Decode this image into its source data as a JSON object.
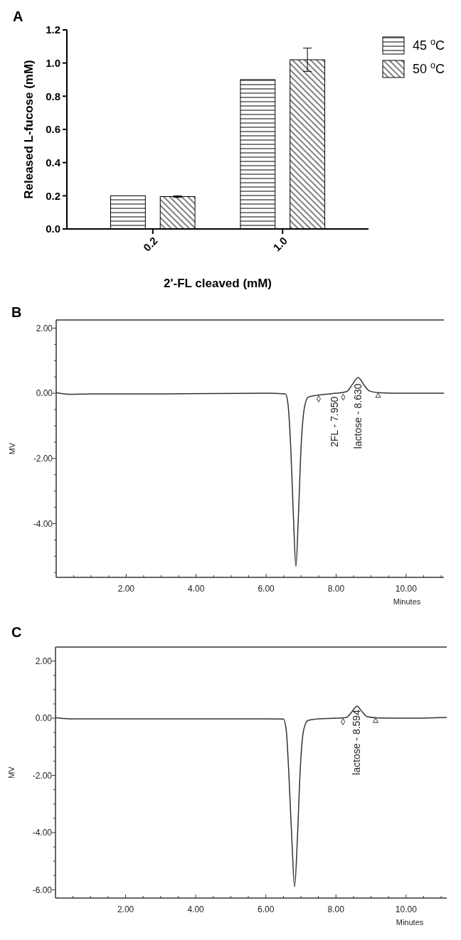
{
  "chart_data": [
    {
      "type": "bar",
      "title": "A",
      "xlabel": "2'-FL cleaved (mM)",
      "ylabel": "Released L-fucose (mM)",
      "categories": [
        "0.2",
        "1.0"
      ],
      "series": [
        {
          "name": "45 $^{o}$C",
          "color": "#000000",
          "values": [
            0.2,
            0.9
          ]
        },
        {
          "name": "50 $^{o}$C",
          "color": "#000000",
          "values": [
            0.195,
            1.02
          ],
          "errors": [
            0.005,
            0.07
          ]
        }
      ],
      "ylim": [
        0,
        1.2
      ],
      "yticks": [
        {
          "value": 0,
          "label": "0.0"
        },
        0.2,
        0.4,
        0.6,
        0.8,
        {
          "value": 1,
          "label": "1.0"
        },
        1.2
      ],
      "legend": "top right"
    },
    {
      "type": "line",
      "title": "B",
      "xlabel": "Minutes",
      "ylabel": "MV",
      "series": [
        {
          "color": "#333333",
          "x": [
            0,
            0.4,
            1,
            3,
            6,
            6.55,
            6.62,
            6.7,
            6.78,
            6.85,
            6.92,
            7.0,
            7.1,
            7.2,
            7.4,
            7.7,
            8.0,
            8.3,
            8.45,
            8.63,
            8.8,
            8.95,
            9.2,
            10,
            11.08
          ],
          "values": [
            0.02,
            -0.03,
            -0.02,
            -0.02,
            0,
            -0.02,
            -0.3,
            -1.6,
            -3.8,
            -5.32,
            -3.8,
            -1.6,
            -0.4,
            -0.12,
            -0.07,
            -0.03,
            0,
            0.05,
            0.25,
            0.48,
            0.25,
            0.07,
            0.02,
            0,
            0
          ]
        },
        {
          "type": "scatter",
          "marker": "diamond",
          "color": "#333333",
          "x": [
            7.5,
            8.2
          ],
          "values": [
            -0.17,
            -0.12
          ]
        },
        {
          "type": "scatter",
          "marker": "triangle",
          "color": "#333333",
          "x": [
            9.2
          ],
          "values": [
            -0.08
          ]
        }
      ],
      "xlim": [
        0,
        11.08
      ],
      "ylim": [
        -5.65,
        2.25
      ],
      "xticks": [
        {
          "value": 0.5,
          "label": null
        },
        {
          "value": 1,
          "label": null
        },
        {
          "value": 1.5,
          "label": null
        },
        {
          "value": 2,
          "label": "2.00"
        },
        {
          "value": 2.5,
          "label": null
        },
        {
          "value": 3,
          "label": null
        },
        {
          "value": 3.5,
          "label": null
        },
        {
          "value": 4,
          "label": "4.00"
        },
        {
          "value": 4.5,
          "label": null
        },
        {
          "value": 5,
          "label": null
        },
        {
          "value": 5.5,
          "label": null
        },
        {
          "value": 6,
          "label": "6.00"
        },
        {
          "value": 6.5,
          "label": null
        },
        {
          "value": 7,
          "label": null
        },
        {
          "value": 7.5,
          "label": null
        },
        {
          "value": 8,
          "label": "8.00"
        },
        {
          "value": 8.5,
          "label": null
        },
        {
          "value": 9,
          "label": null
        },
        {
          "value": 9.5,
          "label": null
        },
        {
          "value": 10,
          "label": "10.00"
        },
        {
          "value": 10.5,
          "label": null
        },
        {
          "value": 11,
          "label": null
        }
      ],
      "yticks": [
        {
          "value": -5.5,
          "label": null
        },
        {
          "value": -5,
          "label": null
        },
        {
          "value": -4.5,
          "label": null
        },
        {
          "value": -4,
          "label": "-4.00"
        },
        {
          "value": -3.5,
          "label": null
        },
        {
          "value": -3,
          "label": null
        },
        {
          "value": -2.5,
          "label": null
        },
        {
          "value": -2,
          "label": "-2.00"
        },
        {
          "value": -1.5,
          "label": null
        },
        {
          "value": -1,
          "label": null
        },
        {
          "value": -0.5,
          "label": null
        },
        {
          "value": 0,
          "label": "0.00"
        },
        {
          "value": 0.5,
          "label": null
        },
        {
          "value": 1,
          "label": null
        },
        {
          "value": 1.5,
          "label": null
        },
        {
          "value": 2,
          "label": "2.00"
        }
      ],
      "annotations": [
        {
          "text": "2FL - 7.950",
          "x": 7.95,
          "y": -0.1
        },
        {
          "text": "lactose - 8.630",
          "x": 8.63,
          "y": 0.3
        }
      ]
    },
    {
      "type": "line",
      "title": "C",
      "xlabel": "Minutes",
      "ylabel": "MV",
      "series": [
        {
          "color": "#333333",
          "x": [
            0,
            0.4,
            1,
            3,
            6,
            6.5,
            6.58,
            6.65,
            6.74,
            6.82,
            6.9,
            6.98,
            7.08,
            7.2,
            7.5,
            8.0,
            8.3,
            8.45,
            8.6,
            8.75,
            8.9,
            9.2,
            10,
            11.16
          ],
          "values": [
            0.02,
            -0.02,
            -0.02,
            -0.02,
            -0.02,
            -0.03,
            -0.4,
            -1.8,
            -4.2,
            -5.9,
            -4.2,
            -1.8,
            -0.4,
            -0.08,
            -0.02,
            0,
            0.03,
            0.22,
            0.42,
            0.22,
            0.05,
            0.01,
            0,
            0.03
          ]
        },
        {
          "type": "scatter",
          "marker": "diamond",
          "color": "#333333",
          "x": [
            8.2
          ],
          "values": [
            -0.12
          ]
        },
        {
          "type": "scatter",
          "marker": "triangle",
          "color": "#333333",
          "x": [
            9.13
          ],
          "values": [
            -0.1
          ]
        }
      ],
      "xlim": [
        0,
        11.16
      ],
      "ylim": [
        -6.29,
        2.49
      ],
      "xticks": [
        {
          "value": 0.5,
          "label": null
        },
        {
          "value": 1,
          "label": null
        },
        {
          "value": 1.5,
          "label": null
        },
        {
          "value": 2,
          "label": "2.00"
        },
        {
          "value": 2.5,
          "label": null
        },
        {
          "value": 3,
          "label": null
        },
        {
          "value": 3.5,
          "label": null
        },
        {
          "value": 4,
          "label": "4.00"
        },
        {
          "value": 4.5,
          "label": null
        },
        {
          "value": 5,
          "label": null
        },
        {
          "value": 5.5,
          "label": null
        },
        {
          "value": 6,
          "label": "6.00"
        },
        {
          "value": 6.5,
          "label": null
        },
        {
          "value": 7,
          "label": null
        },
        {
          "value": 7.5,
          "label": null
        },
        {
          "value": 8,
          "label": "8.00"
        },
        {
          "value": 8.5,
          "label": null
        },
        {
          "value": 9,
          "label": null
        },
        {
          "value": 9.5,
          "label": null
        },
        {
          "value": 10,
          "label": "10.00"
        },
        {
          "value": 10.5,
          "label": null
        },
        {
          "value": 11,
          "label": null
        }
      ],
      "yticks": [
        {
          "value": -6,
          "label": "-6.00"
        },
        {
          "value": -5.5,
          "label": null
        },
        {
          "value": -5,
          "label": null
        },
        {
          "value": -4.5,
          "label": null
        },
        {
          "value": -4,
          "label": "-4.00"
        },
        {
          "value": -3.5,
          "label": null
        },
        {
          "value": -3,
          "label": null
        },
        {
          "value": -2.5,
          "label": null
        },
        {
          "value": -2,
          "label": "-2.00"
        },
        {
          "value": -1.5,
          "label": null
        },
        {
          "value": -1,
          "label": null
        },
        {
          "value": -0.5,
          "label": null
        },
        {
          "value": 0,
          "label": "0.00"
        },
        {
          "value": 0.5,
          "label": null
        },
        {
          "value": 1,
          "label": null
        },
        {
          "value": 1.5,
          "label": null
        },
        {
          "value": 2,
          "label": "2.00"
        }
      ],
      "annotations": [
        {
          "text": "lactose - 8.594",
          "x": 8.594,
          "y": 0.3
        }
      ]
    }
  ]
}
